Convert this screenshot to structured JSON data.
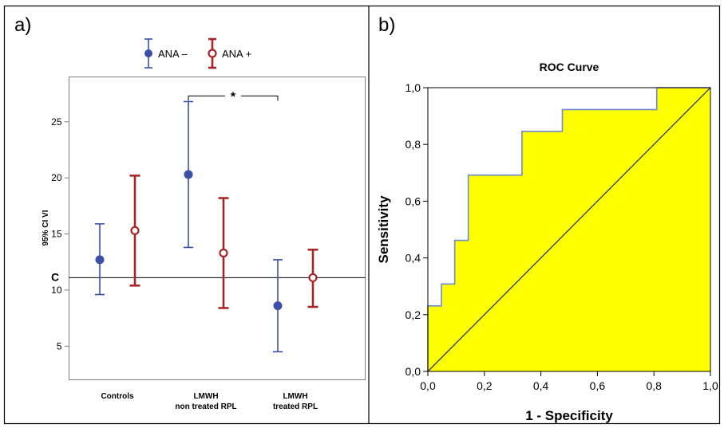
{
  "panels": {
    "a_label": "a)",
    "b_label": "b)"
  },
  "chart_data": [
    {
      "type": "errorbar",
      "title": "",
      "xlabel": "",
      "ylabel": "95% CI VI",
      "ylim": [
        2,
        29
      ],
      "yticks": [
        5,
        10,
        15,
        20,
        25
      ],
      "categories": [
        "Controls",
        "LMWH non treated RPL",
        "LMWH treated RPL"
      ],
      "category_lines": [
        [
          "Controls"
        ],
        [
          "LMWH",
          "non treated RPL"
        ],
        [
          "LMWH",
          "treated RPL"
        ]
      ],
      "legend": {
        "position": "top-center",
        "entries": [
          "ANA –",
          "ANA +"
        ]
      },
      "series": [
        {
          "name": "ANA –",
          "color": "#3a4fa8",
          "marker": "filled-circle",
          "mean": [
            12.7,
            20.3,
            8.6
          ],
          "lower": [
            9.6,
            13.8,
            4.5
          ],
          "upper": [
            15.9,
            26.8,
            12.7
          ]
        },
        {
          "name": "ANA +",
          "color": "#a82428",
          "marker": "open-circle",
          "mean": [
            15.3,
            13.3,
            11.1
          ],
          "lower": [
            10.4,
            8.4,
            8.5
          ],
          "upper": [
            20.2,
            18.2,
            13.6
          ]
        }
      ],
      "reference_line": {
        "label": "C",
        "value": 11.1
      },
      "annotation": {
        "text": "*",
        "from_category": 1,
        "to_category": 2,
        "y": 27.3
      }
    },
    {
      "type": "line",
      "title": "ROC Curve",
      "xlabel": "1 - Specificity",
      "ylabel": "Sensitivity",
      "xlim": [
        0,
        1
      ],
      "ylim": [
        0,
        1
      ],
      "xticks": [
        "0,0",
        "0,2",
        "0,4",
        "0,6",
        "0,8",
        "1,0"
      ],
      "yticks": [
        "0,0",
        "0,2",
        "0,4",
        "0,6",
        "0,8",
        "1,0"
      ],
      "fill_color": "#ffff00",
      "curve_color": "#6f87d8",
      "diagonal_color": "#2a3a80",
      "roc": {
        "x": [
          0,
          0,
          0.048,
          0.048,
          0.095,
          0.095,
          0.143,
          0.143,
          0.333,
          0.333,
          0.476,
          0.476,
          0.81,
          0.81,
          1
        ],
        "y": [
          0,
          0.231,
          0.231,
          0.308,
          0.308,
          0.462,
          0.462,
          0.692,
          0.692,
          0.846,
          0.846,
          0.923,
          0.923,
          1,
          1
        ]
      }
    }
  ]
}
